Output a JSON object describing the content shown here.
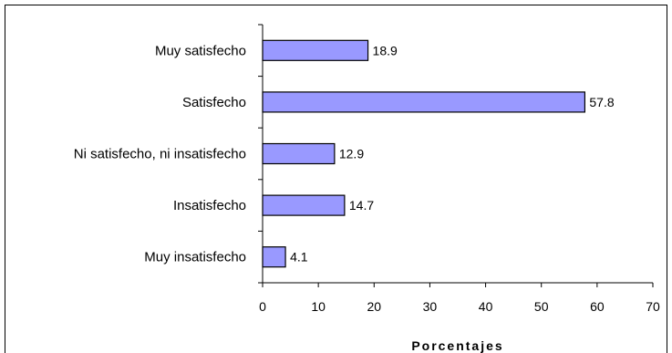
{
  "chart_data": {
    "type": "bar",
    "orientation": "horizontal",
    "categories": [
      "Muy satisfecho",
      "Satisfecho",
      "Ni satisfecho, ni insatisfecho",
      "Insatisfecho",
      "Muy insatisfecho"
    ],
    "values": [
      18.9,
      57.8,
      12.9,
      14.7,
      4.1
    ],
    "value_labels": [
      "18.9",
      "57.8",
      "12.9",
      "14.7",
      "4.1"
    ],
    "xlabel": "Porcentajes",
    "xlim": [
      0,
      70
    ],
    "xticks": [
      0,
      10,
      20,
      30,
      40,
      50,
      60,
      70
    ],
    "grid": false,
    "legend": "none",
    "colors": {
      "bar_fill": "#9999ff",
      "bar_stroke": "#000000"
    }
  }
}
